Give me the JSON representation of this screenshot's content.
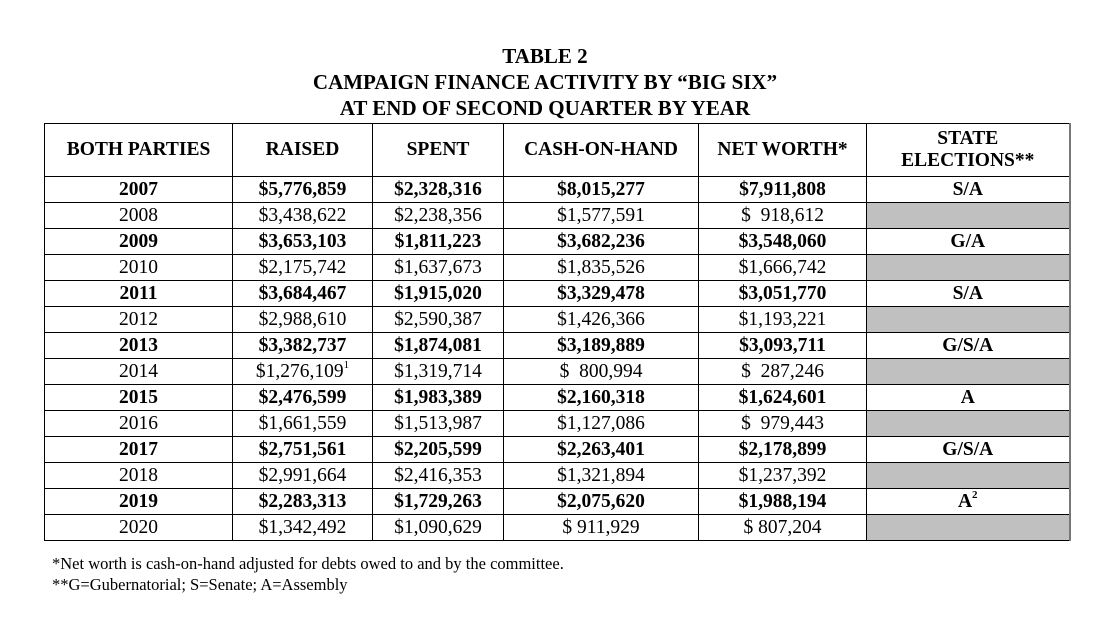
{
  "title": {
    "line1": "TABLE 2",
    "line2": "CAMPAIGN FINANCE ACTIVITY BY “BIG SIX”",
    "line3": "AT END OF SECOND QUARTER BY YEAR"
  },
  "table": {
    "columns": [
      "BOTH PARTIES",
      "RAISED",
      "SPENT",
      "CASH-ON-HAND",
      "NET WORTH*",
      "STATE\nELECTIONS**"
    ],
    "rows": [
      {
        "year": "2007",
        "raised": "$5,776,859",
        "spent": "$2,328,316",
        "cash": "$8,015,277",
        "net": "$7,911,808",
        "elections": "S/A",
        "bold": true
      },
      {
        "year": "2008",
        "raised": "$3,438,622",
        "spent": "$2,238,356",
        "cash": "$1,577,591",
        "net": "$  918,612",
        "elections": "",
        "bold": false
      },
      {
        "year": "2009",
        "raised": "$3,653,103",
        "spent": "$1,811,223",
        "cash": "$3,682,236",
        "net": "$3,548,060",
        "elections": "G/A",
        "bold": true
      },
      {
        "year": "2010",
        "raised": "$2,175,742",
        "spent": "$1,637,673",
        "cash": "$1,835,526",
        "net": "$1,666,742",
        "elections": "",
        "bold": false
      },
      {
        "year": "2011",
        "raised": "$3,684,467",
        "spent": "$1,915,020",
        "cash": "$3,329,478",
        "net": "$3,051,770",
        "elections": "S/A",
        "bold": true
      },
      {
        "year": "2012",
        "raised": "$2,988,610",
        "spent": "$2,590,387",
        "cash": "$1,426,366",
        "net": "$1,193,221",
        "elections": "",
        "bold": false
      },
      {
        "year": "2013",
        "raised": "$3,382,737",
        "spent": "$1,874,081",
        "cash": "$3,189,889",
        "net": "$3,093,711",
        "elections": "G/S/A",
        "bold": true
      },
      {
        "year": "2014",
        "raised": "$1,276,109",
        "raised_sup": "1",
        "spent": "$1,319,714",
        "cash": "$  800,994",
        "net": "$  287,246",
        "elections": "",
        "bold": false
      },
      {
        "year": "2015",
        "raised": "$2,476,599",
        "spent": "$1,983,389",
        "cash": "$2,160,318",
        "net": "$1,624,601",
        "elections": "A",
        "bold": true
      },
      {
        "year": "2016",
        "raised": "$1,661,559",
        "spent": "$1,513,987",
        "cash": "$1,127,086",
        "net": "$  979,443",
        "elections": "",
        "bold": false
      },
      {
        "year": "2017",
        "raised": "$2,751,561",
        "spent": "$2,205,599",
        "cash": "$2,263,401",
        "net": "$2,178,899",
        "elections": "G/S/A",
        "bold": true
      },
      {
        "year": "2018",
        "raised": "$2,991,664",
        "spent": "$2,416,353",
        "cash": "$1,321,894",
        "net": "$1,237,392",
        "elections": "",
        "bold": false
      },
      {
        "year": "2019",
        "raised": "$2,283,313",
        "spent": "$1,729,263",
        "cash": "$2,075,620",
        "net": "$1,988,194",
        "elections": "A",
        "elections_sup": "2",
        "bold": true
      },
      {
        "year": "2020",
        "raised": "$1,342,492",
        "spent": "$1,090,629",
        "cash": "$ 911,929",
        "net": "$ 807,204",
        "elections": "",
        "bold": false
      }
    ],
    "no_election_fill": "#c0c0c0"
  },
  "notes": {
    "note1": "*Net worth is cash-on-hand adjusted for debts owed to and by the committee.",
    "note2": "**G=Gubernatorial; S=Senate; A=Assembly"
  }
}
